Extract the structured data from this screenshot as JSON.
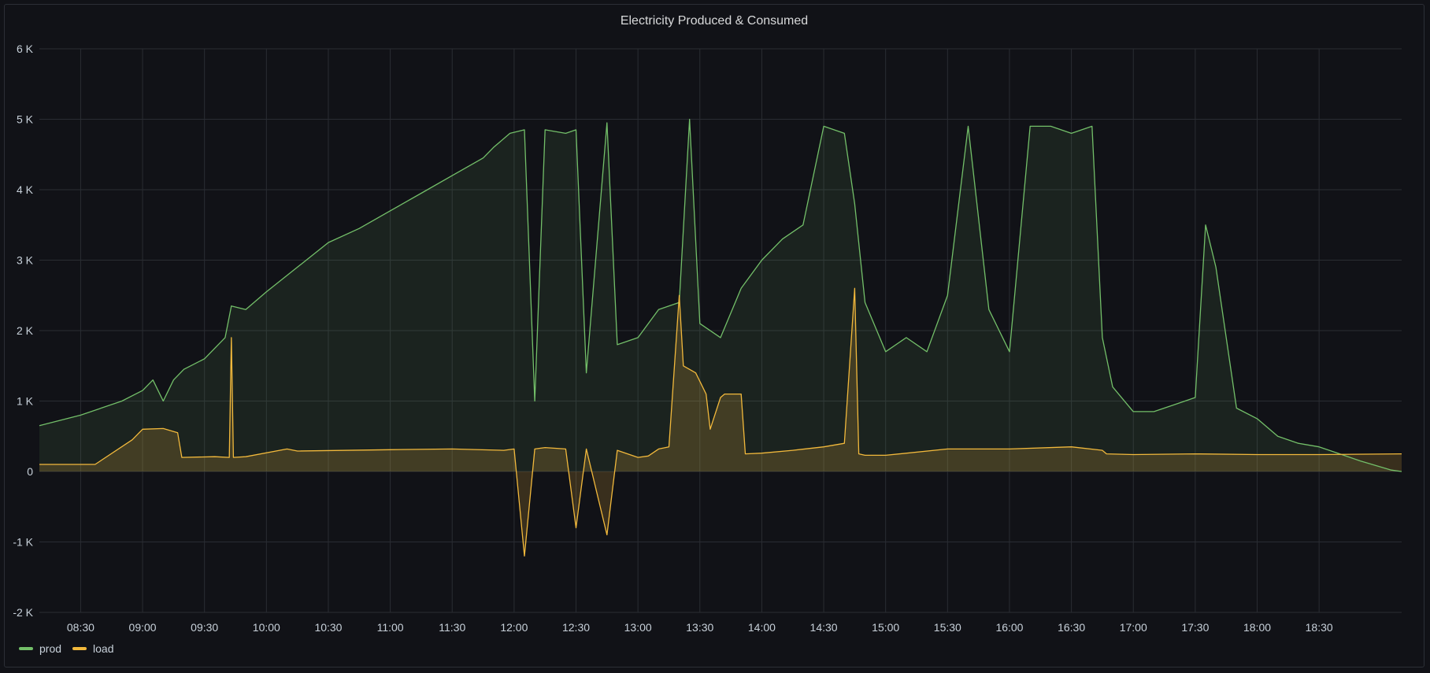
{
  "panel": {
    "title": "Electricity Produced & Consumed"
  },
  "colors": {
    "prod": "#73bf69",
    "load": "#f2b93c",
    "grid": "#2a2d33",
    "background": "#111217",
    "text": "#c7d0d9"
  },
  "chart_data": {
    "type": "area",
    "title": "Electricity Produced & Consumed",
    "xlabel": "",
    "ylabel": "",
    "x_range": [
      "08:10",
      "19:10"
    ],
    "ylim": [
      -2000,
      6000
    ],
    "y_ticks": [
      {
        "value": -2000,
        "label": "-2 K"
      },
      {
        "value": -1000,
        "label": "-1 K"
      },
      {
        "value": 0,
        "label": "0"
      },
      {
        "value": 1000,
        "label": "1 K"
      },
      {
        "value": 2000,
        "label": "2 K"
      },
      {
        "value": 3000,
        "label": "3 K"
      },
      {
        "value": 4000,
        "label": "4 K"
      },
      {
        "value": 5000,
        "label": "5 K"
      },
      {
        "value": 6000,
        "label": "6 K"
      }
    ],
    "x_ticks": [
      "08:30",
      "09:00",
      "09:30",
      "10:00",
      "10:30",
      "11:00",
      "11:30",
      "12:00",
      "12:30",
      "13:00",
      "13:30",
      "14:00",
      "14:30",
      "15:00",
      "15:30",
      "16:00",
      "16:30",
      "17:00",
      "17:30",
      "18:00",
      "18:30"
    ],
    "grid": true,
    "legend_placement": "bottom-left",
    "series": [
      {
        "name": "prod",
        "x": [
          "08:10",
          "08:30",
          "08:50",
          "09:00",
          "09:05",
          "09:10",
          "09:15",
          "09:20",
          "09:30",
          "09:40",
          "09:43",
          "09:50",
          "10:00",
          "10:15",
          "10:30",
          "10:45",
          "11:00",
          "11:15",
          "11:30",
          "11:45",
          "11:50",
          "11:58",
          "12:05",
          "12:10",
          "12:15",
          "12:25",
          "12:30",
          "12:35",
          "12:45",
          "12:50",
          "13:00",
          "13:10",
          "13:20",
          "13:25",
          "13:30",
          "13:40",
          "13:50",
          "14:00",
          "14:10",
          "14:20",
          "14:30",
          "14:40",
          "14:45",
          "14:50",
          "15:00",
          "15:10",
          "15:20",
          "15:30",
          "15:40",
          "15:50",
          "16:00",
          "16:10",
          "16:20",
          "16:30",
          "16:40",
          "16:45",
          "16:50",
          "17:00",
          "17:10",
          "17:20",
          "17:30",
          "17:35",
          "17:40",
          "17:50",
          "18:00",
          "18:10",
          "18:20",
          "18:30",
          "18:40",
          "18:50",
          "19:05",
          "19:10"
        ],
        "values": [
          650,
          800,
          1000,
          1150,
          1300,
          1000,
          1300,
          1450,
          1600,
          1900,
          2350,
          2300,
          2550,
          2900,
          3250,
          3450,
          3700,
          3950,
          4200,
          4450,
          4600,
          4800,
          4850,
          1000,
          4850,
          4800,
          4850,
          1400,
          4950,
          1800,
          1900,
          2300,
          2400,
          5000,
          2100,
          1900,
          2600,
          3000,
          3300,
          3500,
          4900,
          4800,
          3800,
          2400,
          1700,
          1900,
          1700,
          2500,
          4900,
          2300,
          1700,
          4900,
          4900,
          4800,
          4900,
          1900,
          1200,
          850,
          850,
          950,
          1050,
          3500,
          2900,
          900,
          750,
          500,
          400,
          350,
          250,
          150,
          20,
          0
        ]
      },
      {
        "name": "load",
        "x": [
          "08:10",
          "08:35",
          "08:37",
          "08:55",
          "09:00",
          "09:10",
          "09:17",
          "09:19",
          "09:35",
          "09:42",
          "09:43",
          "09:44",
          "09:50",
          "10:10",
          "10:15",
          "11:00",
          "11:30",
          "11:55",
          "12:00",
          "12:05",
          "12:10",
          "12:15",
          "12:25",
          "12:30",
          "12:35",
          "12:45",
          "12:50",
          "12:55",
          "13:00",
          "13:05",
          "13:10",
          "13:15",
          "13:20",
          "13:22",
          "13:28",
          "13:33",
          "13:35",
          "13:40",
          "13:42",
          "13:50",
          "13:52",
          "14:00",
          "14:15",
          "14:30",
          "14:40",
          "14:45",
          "14:47",
          "14:50",
          "15:00",
          "15:30",
          "16:00",
          "16:30",
          "16:45",
          "16:47",
          "17:00",
          "17:30",
          "18:00",
          "18:30",
          "19:10"
        ],
        "values": [
          100,
          100,
          100,
          450,
          600,
          610,
          550,
          200,
          210,
          200,
          1900,
          200,
          210,
          320,
          290,
          310,
          320,
          300,
          320,
          -1200,
          320,
          340,
          320,
          -800,
          320,
          -900,
          300,
          250,
          200,
          220,
          320,
          350,
          2500,
          1500,
          1400,
          1100,
          600,
          1050,
          1100,
          1100,
          250,
          260,
          300,
          350,
          400,
          2600,
          250,
          230,
          230,
          320,
          320,
          350,
          300,
          250,
          240,
          250,
          240,
          240,
          250
        ]
      }
    ]
  }
}
